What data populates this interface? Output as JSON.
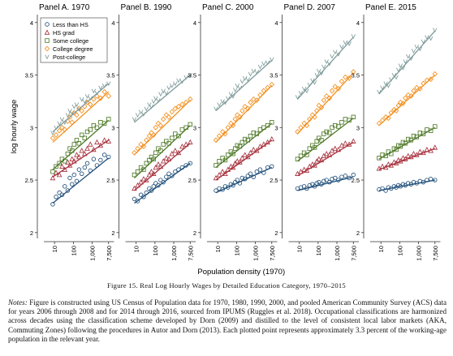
{
  "figure": {
    "caption": "Figure 15. Real Log Hourly Wages by Detailed Education Category, 1970–2015",
    "notes_label": "Notes:",
    "notes_text": "Figure is constructed using US Census of Population data for 1970, 1980, 1990, 2000, and pooled American Community Survey (ACS) data for years 2006 through 2008 and for 2014 through 2016, sourced from IPUMS (Ruggles et al. 2018). Occupational classifications are harmonized across decades using the classification scheme developed by Dorn (2009) and distilled to the level of consistent local labor markets (AKA, Commuting Zones) following the procedures in Autor and Dorn (2013). Each plotted point represents approximately 3.3 percent of the working-age population in the relevant year."
  },
  "colors": {
    "less_than_hs": "#1f4e79",
    "hs_grad": "#a8323e",
    "some_college": "#4f7a28",
    "college_degree": "#f28e1c",
    "post_college": "#7e9a9a"
  },
  "chart_data": {
    "type": "scatter",
    "ylabel": "log hourly wage",
    "xlabel": "Population density (1970)",
    "x_scale": "log",
    "xlim": [
      4,
      12000
    ],
    "ylim": [
      1.96,
      4.06
    ],
    "y_ticks": [
      2,
      2.5,
      3,
      3.5,
      4
    ],
    "y_tick_labels": [
      "2",
      "2.5",
      "3",
      "3.5",
      "4"
    ],
    "x_ticks": [
      10,
      100,
      1000,
      7500
    ],
    "x_tick_labels": [
      "10",
      "100",
      "1,000",
      "7,500"
    ],
    "legend": {
      "placement": "top-left",
      "entries": [
        {
          "label": "Less than HS",
          "marker": "circle",
          "color_key": "less_than_hs"
        },
        {
          "label": "HS grad",
          "marker": "triangle",
          "color_key": "hs_grad"
        },
        {
          "label": "Some college",
          "marker": "square",
          "color_key": "some_college"
        },
        {
          "label": "College degree",
          "marker": "diamond",
          "color_key": "college_degree"
        },
        {
          "label": "Post-college",
          "marker": "v",
          "color_key": "post_college"
        }
      ]
    },
    "x_points": [
      8,
      12,
      18,
      25,
      35,
      50,
      65,
      85,
      110,
      150,
      200,
      280,
      400,
      550,
      800,
      1200,
      1800,
      2800,
      4500,
      7500
    ],
    "panels": [
      {
        "title": "Panel A. 1970",
        "series": [
          {
            "color_key": "less_than_hs",
            "marker": "circle",
            "fit": [
              2.28,
              2.71
            ],
            "y": [
              2.27,
              2.34,
              2.38,
              2.36,
              2.44,
              2.4,
              2.52,
              2.46,
              2.55,
              2.49,
              2.6,
              2.56,
              2.62,
              2.66,
              2.59,
              2.7,
              2.64,
              2.69,
              2.74,
              2.72
            ]
          },
          {
            "color_key": "hs_grad",
            "marker": "triangle",
            "fit": [
              2.53,
              2.88
            ],
            "y": [
              2.52,
              2.57,
              2.55,
              2.63,
              2.6,
              2.67,
              2.64,
              2.7,
              2.68,
              2.74,
              2.72,
              2.78,
              2.75,
              2.8,
              2.84,
              2.79,
              2.86,
              2.83,
              2.88,
              2.87
            ]
          },
          {
            "color_key": "some_college",
            "marker": "square",
            "fit": [
              2.6,
              3.07
            ],
            "y": [
              2.58,
              2.63,
              2.66,
              2.7,
              2.68,
              2.75,
              2.8,
              2.78,
              2.84,
              2.88,
              2.85,
              2.93,
              2.9,
              2.96,
              2.98,
              3.02,
              3.0,
              3.05,
              3.04,
              3.08
            ]
          },
          {
            "color_key": "college_degree",
            "marker": "diamond",
            "fit": [
              2.86,
              3.34
            ],
            "y": [
              2.9,
              2.93,
              2.97,
              3.0,
              2.98,
              3.06,
              3.1,
              3.05,
              3.14,
              3.12,
              3.18,
              3.16,
              3.2,
              3.24,
              3.22,
              3.27,
              3.3,
              3.28,
              3.34,
              3.3
            ]
          },
          {
            "color_key": "post_college",
            "marker": "v",
            "fit": [
              2.96,
              3.42
            ],
            "y": [
              2.95,
              3.0,
              3.04,
              3.08,
              3.05,
              3.12,
              3.16,
              3.14,
              3.2,
              3.22,
              3.18,
              3.27,
              3.25,
              3.3,
              3.28,
              3.35,
              3.33,
              3.38,
              3.4,
              3.42
            ]
          }
        ]
      },
      {
        "title": "Panel B. 1990",
        "series": [
          {
            "color_key": "less_than_hs",
            "marker": "circle",
            "fit": [
              2.28,
              2.66
            ],
            "y": [
              2.32,
              2.3,
              2.36,
              2.34,
              2.38,
              2.42,
              2.4,
              2.44,
              2.47,
              2.45,
              2.5,
              2.48,
              2.53,
              2.56,
              2.54,
              2.58,
              2.6,
              2.62,
              2.64,
              2.66
            ]
          },
          {
            "color_key": "hs_grad",
            "marker": "triangle",
            "fit": [
              2.4,
              2.85
            ],
            "y": [
              2.42,
              2.45,
              2.48,
              2.51,
              2.5,
              2.55,
              2.58,
              2.56,
              2.62,
              2.65,
              2.63,
              2.68,
              2.71,
              2.7,
              2.75,
              2.78,
              2.76,
              2.82,
              2.84,
              2.86
            ]
          },
          {
            "color_key": "some_college",
            "marker": "square",
            "fit": [
              2.52,
              3.02
            ],
            "y": [
              2.55,
              2.58,
              2.62,
              2.6,
              2.66,
              2.69,
              2.72,
              2.7,
              2.76,
              2.8,
              2.78,
              2.84,
              2.87,
              2.85,
              2.9,
              2.94,
              2.92,
              2.98,
              3.0,
              3.03
            ]
          },
          {
            "color_key": "college_degree",
            "marker": "diamond",
            "fit": [
              2.74,
              3.26
            ],
            "y": [
              2.76,
              2.8,
              2.84,
              2.82,
              2.88,
              2.92,
              2.95,
              2.93,
              3.0,
              3.04,
              3.02,
              3.08,
              3.12,
              3.1,
              3.15,
              3.18,
              3.2,
              3.22,
              3.24,
              3.27
            ]
          },
          {
            "color_key": "post_college",
            "marker": "v",
            "fit": [
              3.05,
              3.5
            ],
            "y": [
              3.08,
              3.12,
              3.15,
              3.13,
              3.18,
              3.22,
              3.2,
              3.25,
              3.28,
              3.26,
              3.32,
              3.35,
              3.33,
              3.38,
              3.4,
              3.42,
              3.45,
              3.44,
              3.48,
              3.5
            ]
          }
        ]
      },
      {
        "title": "Panel C. 2000",
        "series": [
          {
            "color_key": "less_than_hs",
            "marker": "circle",
            "fit": [
              2.38,
              2.62
            ],
            "y": [
              2.4,
              2.42,
              2.41,
              2.44,
              2.43,
              2.46,
              2.45,
              2.48,
              2.5,
              2.47,
              2.52,
              2.51,
              2.54,
              2.56,
              2.53,
              2.58,
              2.6,
              2.57,
              2.62,
              2.63
            ]
          },
          {
            "color_key": "hs_grad",
            "marker": "triangle",
            "fit": [
              2.5,
              2.88
            ],
            "y": [
              2.52,
              2.55,
              2.58,
              2.56,
              2.6,
              2.63,
              2.62,
              2.66,
              2.68,
              2.67,
              2.71,
              2.74,
              2.72,
              2.76,
              2.79,
              2.78,
              2.82,
              2.84,
              2.86,
              2.89
            ]
          },
          {
            "color_key": "some_college",
            "marker": "square",
            "fit": [
              2.62,
              3.04
            ],
            "y": [
              2.64,
              2.68,
              2.71,
              2.69,
              2.74,
              2.77,
              2.75,
              2.8,
              2.83,
              2.82,
              2.86,
              2.89,
              2.88,
              2.92,
              2.95,
              2.94,
              2.98,
              3.0,
              3.02,
              3.05
            ]
          },
          {
            "color_key": "college_degree",
            "marker": "diamond",
            "fit": [
              2.86,
              3.4
            ],
            "y": [
              2.88,
              2.92,
              2.96,
              2.94,
              3.0,
              3.04,
              3.02,
              3.08,
              3.12,
              3.1,
              3.16,
              3.2,
              3.18,
              3.24,
              3.27,
              3.26,
              3.31,
              3.35,
              3.38,
              3.41
            ]
          },
          {
            "color_key": "post_college",
            "marker": "v",
            "fit": [
              3.16,
              3.64
            ],
            "y": [
              3.18,
              3.22,
              3.25,
              3.24,
              3.28,
              3.32,
              3.3,
              3.36,
              3.4,
              3.38,
              3.44,
              3.47,
              3.46,
              3.51,
              3.54,
              3.53,
              3.58,
              3.61,
              3.62,
              3.65
            ]
          }
        ]
      },
      {
        "title": "Panel D. 2007",
        "series": [
          {
            "color_key": "less_than_hs",
            "marker": "circle",
            "fit": [
              2.4,
              2.53
            ],
            "y": [
              2.42,
              2.43,
              2.44,
              2.42,
              2.45,
              2.46,
              2.44,
              2.47,
              2.48,
              2.46,
              2.49,
              2.5,
              2.48,
              2.51,
              2.52,
              2.5,
              2.53,
              2.54,
              2.52,
              2.55
            ]
          },
          {
            "color_key": "hs_grad",
            "marker": "triangle",
            "fit": [
              2.54,
              2.86
            ],
            "y": [
              2.56,
              2.58,
              2.6,
              2.59,
              2.63,
              2.65,
              2.64,
              2.68,
              2.7,
              2.69,
              2.73,
              2.75,
              2.74,
              2.78,
              2.8,
              2.79,
              2.83,
              2.85,
              2.84,
              2.87
            ]
          },
          {
            "color_key": "some_college",
            "marker": "square",
            "fit": [
              2.68,
              3.09
            ],
            "y": [
              2.7,
              2.73,
              2.76,
              2.74,
              2.8,
              2.83,
              2.81,
              2.87,
              2.9,
              2.88,
              2.94,
              2.96,
              2.95,
              3.0,
              3.02,
              3.01,
              3.05,
              3.08,
              3.07,
              3.1
            ]
          },
          {
            "color_key": "college_degree",
            "marker": "diamond",
            "fit": [
              2.94,
              3.52
            ],
            "y": [
              2.96,
              3.0,
              3.04,
              3.02,
              3.08,
              3.12,
              3.1,
              3.16,
              3.21,
              3.19,
              3.26,
              3.3,
              3.28,
              3.35,
              3.39,
              3.37,
              3.44,
              3.48,
              3.47,
              3.53
            ]
          },
          {
            "color_key": "post_college",
            "marker": "v",
            "fit": [
              3.27,
              3.86
            ],
            "y": [
              3.29,
              3.33,
              3.37,
              3.35,
              3.41,
              3.45,
              3.43,
              3.5,
              3.54,
              3.52,
              3.58,
              3.63,
              3.61,
              3.68,
              3.72,
              3.7,
              3.77,
              3.81,
              3.8,
              3.87
            ]
          }
        ]
      },
      {
        "title": "Panel E. 2015",
        "series": [
          {
            "color_key": "less_than_hs",
            "marker": "circle",
            "fit": [
              2.4,
              2.5
            ],
            "y": [
              2.41,
              2.42,
              2.4,
              2.43,
              2.42,
              2.44,
              2.43,
              2.45,
              2.44,
              2.46,
              2.45,
              2.47,
              2.46,
              2.48,
              2.47,
              2.49,
              2.48,
              2.5,
              2.51,
              2.5
            ]
          },
          {
            "color_key": "hs_grad",
            "marker": "triangle",
            "fit": [
              2.6,
              2.8
            ],
            "y": [
              2.61,
              2.63,
              2.62,
              2.65,
              2.64,
              2.67,
              2.66,
              2.69,
              2.68,
              2.71,
              2.7,
              2.73,
              2.72,
              2.75,
              2.74,
              2.77,
              2.76,
              2.79,
              2.78,
              2.81
            ]
          },
          {
            "color_key": "some_college",
            "marker": "square",
            "fit": [
              2.7,
              3.0
            ],
            "y": [
              2.71,
              2.74,
              2.73,
              2.77,
              2.75,
              2.8,
              2.79,
              2.83,
              2.82,
              2.86,
              2.85,
              2.89,
              2.88,
              2.92,
              2.91,
              2.95,
              2.94,
              2.98,
              2.97,
              3.01
            ]
          },
          {
            "color_key": "college_degree",
            "marker": "diamond",
            "fit": [
              3.02,
              3.5
            ],
            "y": [
              3.04,
              3.07,
              3.1,
              3.09,
              3.14,
              3.17,
              3.16,
              3.21,
              3.24,
              3.23,
              3.28,
              3.31,
              3.3,
              3.35,
              3.38,
              3.37,
              3.42,
              3.45,
              3.46,
              3.51
            ]
          },
          {
            "color_key": "post_college",
            "marker": "v",
            "fit": [
              3.32,
              3.92
            ],
            "y": [
              3.34,
              3.38,
              3.42,
              3.4,
              3.46,
              3.5,
              3.48,
              3.55,
              3.59,
              3.57,
              3.63,
              3.68,
              3.66,
              3.73,
              3.77,
              3.75,
              3.82,
              3.86,
              3.85,
              3.93
            ]
          }
        ]
      }
    ]
  }
}
